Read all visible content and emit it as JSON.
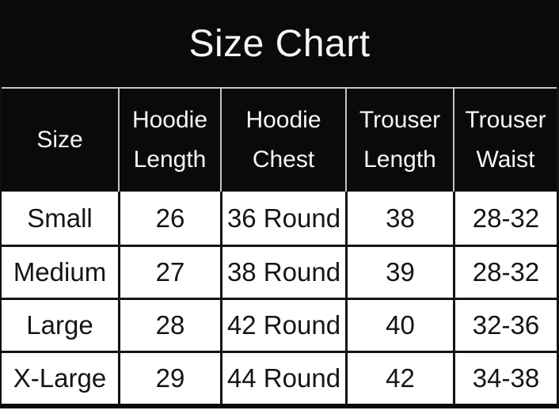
{
  "chart_data": {
    "type": "table",
    "title": "Size Chart",
    "columns": [
      "Size",
      "Hoodie Length",
      "Hoodie Chest",
      "Trouser Length",
      "Trouser Waist"
    ],
    "rows": [
      [
        "Small",
        "26",
        "36 Round",
        "38",
        "28-32"
      ],
      [
        "Medium",
        "27",
        "38 Round",
        "39",
        "28-32"
      ],
      [
        "Large",
        "28",
        "42 Round",
        "40",
        "32-36"
      ],
      [
        "X-Large",
        "29",
        "44 Round",
        "42",
        "34-38"
      ]
    ]
  },
  "colors": {
    "band_background": "#0a0a0a",
    "header_text": "#f7f7f7",
    "header_grid_line": "#c4c4c4",
    "body_background": "#ffffff",
    "body_text": "#151515",
    "body_grid_line": "#141414"
  }
}
